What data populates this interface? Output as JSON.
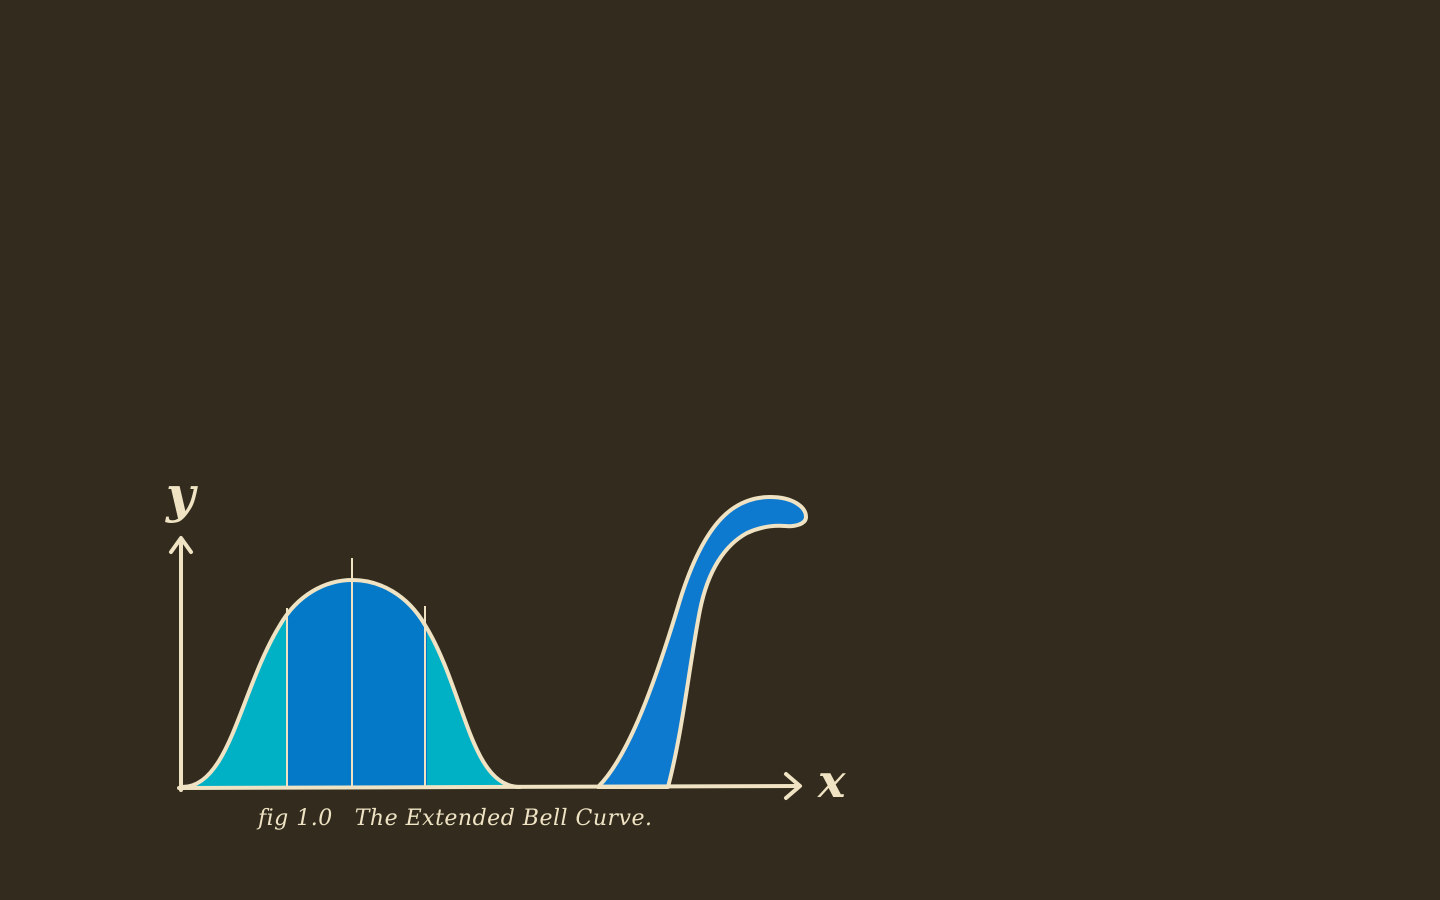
{
  "figure": {
    "y_axis_label": "y",
    "x_axis_label": "x",
    "caption_number": "fig 1.0",
    "caption_title": "The Extended Bell Curve."
  },
  "colors": {
    "background": "#332c1e",
    "line": "#efe3c4",
    "bell_center": "#0379c7",
    "bell_tails": "#00b0c4",
    "monster": "#0d7ad0"
  }
}
